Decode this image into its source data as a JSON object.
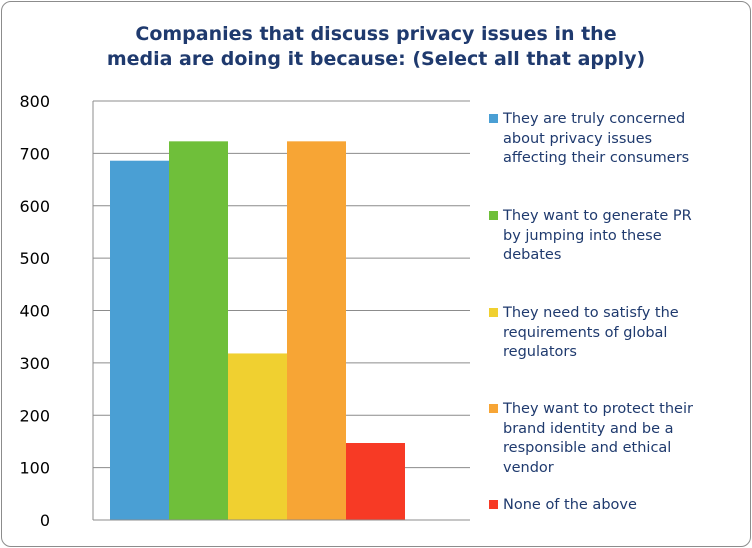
{
  "chart_data": {
    "type": "bar",
    "title_lines": [
      "Companies that discuss privacy issues in the",
      "media are doing it because: (Select all that apply)"
    ],
    "xlabel": "",
    "ylabel": "",
    "ylim": [
      0,
      800
    ],
    "yticks": [
      "0",
      "100",
      "200",
      "300",
      "400",
      "500",
      "600",
      "700",
      "800"
    ],
    "grid": true,
    "legend_position": "right",
    "series": [
      {
        "name": "They are truly concerned\nabout privacy issues\naffecting their consumers",
        "value": 686,
        "color": "#4a9fd4"
      },
      {
        "name": "They want to generate PR\nby jumping into these\ndebates",
        "value": 723,
        "color": "#6fbf3a"
      },
      {
        "name": "They need to satisfy the\nrequirements of global\nregulators",
        "value": 318,
        "color": "#f0d030"
      },
      {
        "name": "They want to protect their\nbrand identity and be a\nresponsible and ethical\nvendor",
        "value": 723,
        "color": "#f7a535"
      },
      {
        "name": "None of the above",
        "value": 147,
        "color": "#f73a25"
      }
    ]
  }
}
